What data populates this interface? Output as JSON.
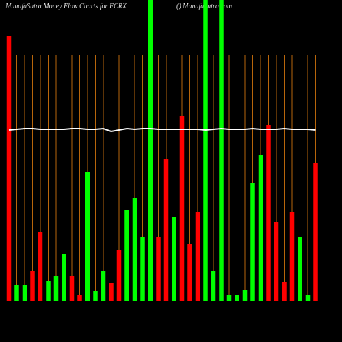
{
  "chart_data": {
    "type": "bar",
    "title": "MunafaSutra  Money Flow  Charts for FCRX",
    "subtitle": "() MunafaSutra.com",
    "values": [
      387,
      23,
      23,
      44,
      101,
      29,
      37,
      69,
      37,
      9,
      189,
      15,
      44,
      26,
      74,
      133,
      150,
      94,
      460,
      93,
      208,
      123,
      270,
      83,
      130,
      460,
      44,
      460,
      8,
      8,
      16,
      172,
      213,
      257,
      115,
      28,
      130,
      94,
      8,
      201
    ],
    "colors": [
      "#ff0000",
      "#00ff00",
      "#00ff00",
      "#ff0000",
      "#ff0000",
      "#00ff00",
      "#00ff00",
      "#00ff00",
      "#ff0000",
      "#ff0000",
      "#00ff00",
      "#00ff00",
      "#00ff00",
      "#ff0000",
      "#ff0000",
      "#00ff00",
      "#00ff00",
      "#00ff00",
      "#00ff00",
      "#ff0000",
      "#ff0000",
      "#00ff00",
      "#ff0000",
      "#ff0000",
      "#ff0000",
      "#00ff00",
      "#00ff00",
      "#00ff00",
      "#00ff00",
      "#00ff00",
      "#00ff00",
      "#00ff00",
      "#00ff00",
      "#ff0000",
      "#ff0000",
      "#ff0000",
      "#ff0000",
      "#00ff00",
      "#00ff00",
      "#ff0000"
    ],
    "line": [
      250,
      251,
      252,
      252,
      251,
      251,
      251,
      251,
      252,
      252,
      251,
      251,
      252,
      248,
      250,
      252,
      251,
      252,
      252,
      251,
      251,
      251,
      251,
      251,
      251,
      250,
      251,
      252,
      251,
      251,
      251,
      252,
      251,
      251,
      251,
      252,
      251,
      251,
      251,
      250
    ],
    "line_color": "#ffffff",
    "grid_color": "#b8660b",
    "ylim": [
      0,
      440
    ]
  }
}
